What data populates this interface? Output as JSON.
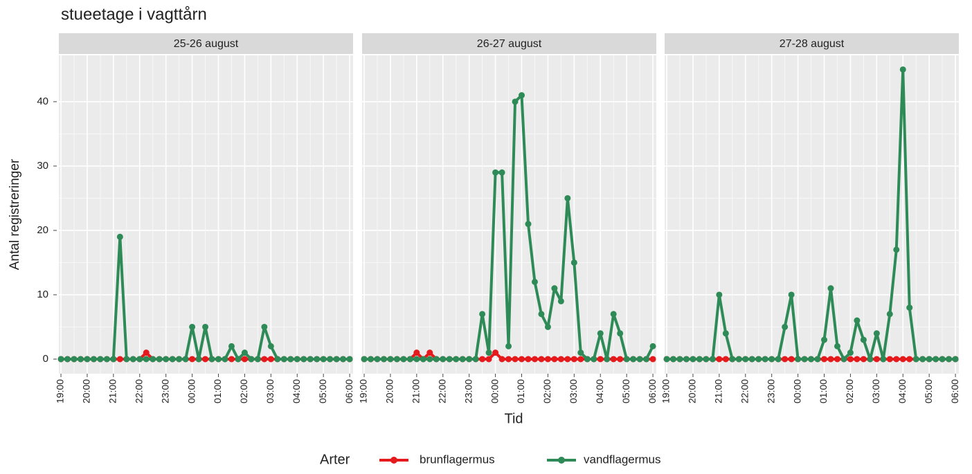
{
  "chart_data": {
    "type": "line",
    "title": "stueetage i vagttårn",
    "xlabel": "Tid",
    "ylabel": "Antal registreringer",
    "legend_title": "Arter",
    "series": [
      {
        "name": "brunflagermus",
        "color": "#e41a1c"
      },
      {
        "name": "vandflagermus",
        "color": "#2e8b57"
      }
    ],
    "x": [
      0,
      0.25,
      0.5,
      0.75,
      1,
      1.25,
      1.5,
      1.75,
      2,
      2.25,
      2.5,
      2.75,
      3,
      3.25,
      3.5,
      3.75,
      4,
      4.25,
      4.5,
      4.75,
      5,
      5.25,
      5.5,
      5.75,
      6,
      6.25,
      6.5,
      6.75,
      7,
      7.25,
      7.5,
      7.75,
      8,
      8.25,
      8.5,
      8.75,
      9,
      9.25,
      9.5,
      9.75,
      10,
      10.25,
      10.5,
      10.75,
      11
    ],
    "xlim": [
      -0.08,
      11.13
    ],
    "xticks": [
      {
        "value": 0,
        "label": "19:00"
      },
      {
        "value": 1,
        "label": "20:00"
      },
      {
        "value": 2,
        "label": "21:00"
      },
      {
        "value": 3,
        "label": "22:00"
      },
      {
        "value": 4,
        "label": "23:00"
      },
      {
        "value": 5,
        "label": "00:00"
      },
      {
        "value": 6,
        "label": "01:00"
      },
      {
        "value": 7,
        "label": "02:00"
      },
      {
        "value": 8,
        "label": "03:00"
      },
      {
        "value": 9,
        "label": "04:00"
      },
      {
        "value": 10,
        "label": "05:00"
      },
      {
        "value": 11,
        "label": "06:00"
      }
    ],
    "ylim": [
      -2.26,
      47.2
    ],
    "yticks": [
      0,
      10,
      20,
      30,
      40
    ],
    "grid": true,
    "facets": [
      {
        "label": "25-26 august",
        "values": [
          [
            0,
            0,
            0,
            0,
            0,
            0,
            0,
            0,
            0,
            0,
            0,
            0,
            0,
            1,
            0,
            0,
            0,
            0,
            0,
            0,
            0,
            0,
            0,
            0,
            0,
            0,
            0,
            0,
            0,
            0,
            0,
            0,
            0,
            0,
            0,
            0,
            0,
            0,
            0,
            0,
            0,
            0,
            0,
            0,
            0
          ],
          [
            0,
            0,
            0,
            0,
            0,
            0,
            0,
            0,
            0,
            19,
            0,
            0,
            0,
            0,
            0,
            0,
            0,
            0,
            0,
            0,
            5,
            0,
            5,
            0,
            0,
            0,
            2,
            0,
            1,
            0,
            0,
            5,
            2,
            0,
            0,
            0,
            0,
            0,
            0,
            0,
            0,
            0,
            0,
            0,
            0
          ]
        ]
      },
      {
        "label": "26-27 august",
        "values": [
          [
            0,
            0,
            0,
            0,
            0,
            0,
            0,
            0,
            1,
            0,
            1,
            0,
            0,
            0,
            0,
            0,
            0,
            0,
            0,
            0,
            1,
            0,
            0,
            0,
            0,
            0,
            0,
            0,
            0,
            0,
            0,
            0,
            0,
            0,
            0,
            0,
            0,
            0,
            0,
            0,
            0,
            0,
            0,
            0,
            0
          ],
          [
            0,
            0,
            0,
            0,
            0,
            0,
            0,
            0,
            0,
            0,
            0,
            0,
            0,
            0,
            0,
            0,
            0,
            0,
            7,
            1,
            29,
            29,
            2,
            40,
            41,
            21,
            12,
            7,
            5,
            11,
            9,
            25,
            15,
            1,
            0,
            0,
            4,
            0,
            7,
            4,
            0,
            0,
            0,
            0,
            2
          ]
        ]
      },
      {
        "label": "27-28 august",
        "values": [
          [
            0,
            0,
            0,
            0,
            0,
            0,
            0,
            0,
            0,
            0,
            0,
            0,
            0,
            0,
            0,
            0,
            0,
            0,
            0,
            0,
            0,
            0,
            0,
            0,
            0,
            0,
            0,
            0,
            0,
            0,
            0,
            0,
            0,
            0,
            0,
            0,
            0,
            0,
            0,
            0,
            0,
            0,
            0,
            0,
            0
          ],
          [
            0,
            0,
            0,
            0,
            0,
            0,
            0,
            0,
            10,
            4,
            0,
            0,
            0,
            0,
            0,
            0,
            0,
            0,
            5,
            10,
            0,
            0,
            0,
            0,
            3,
            11,
            2,
            0,
            1,
            6,
            3,
            0,
            4,
            0,
            7,
            17,
            45,
            8,
            0,
            0,
            0,
            0,
            0,
            0,
            0
          ]
        ]
      }
    ]
  }
}
